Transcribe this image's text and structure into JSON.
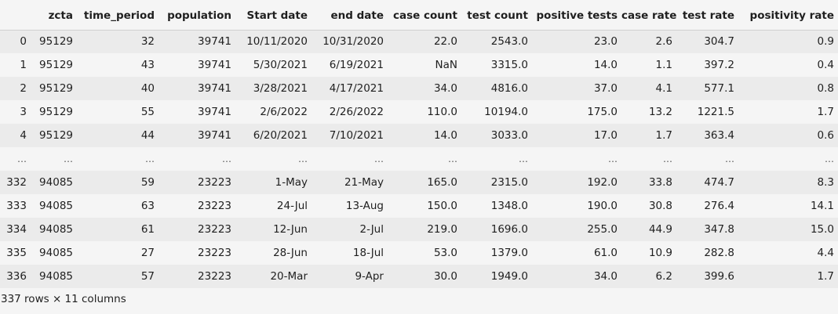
{
  "table": {
    "columns": [
      "",
      "zcta",
      "time_period",
      "population",
      "Start date",
      "end date",
      "case count",
      "test count",
      "positive tests",
      "case rate",
      "test rate",
      "positivity rate"
    ],
    "rows": [
      [
        "0",
        "95129",
        "32",
        "39741",
        "10/11/2020",
        "10/31/2020",
        "22.0",
        "2543.0",
        "23.0",
        "2.6",
        "304.7",
        "0.9"
      ],
      [
        "1",
        "95129",
        "43",
        "39741",
        "5/30/2021",
        "6/19/2021",
        "NaN",
        "3315.0",
        "14.0",
        "1.1",
        "397.2",
        "0.4"
      ],
      [
        "2",
        "95129",
        "40",
        "39741",
        "3/28/2021",
        "4/17/2021",
        "34.0",
        "4816.0",
        "37.0",
        "4.1",
        "577.1",
        "0.8"
      ],
      [
        "3",
        "95129",
        "55",
        "39741",
        "2/6/2022",
        "2/26/2022",
        "110.0",
        "10194.0",
        "175.0",
        "13.2",
        "1221.5",
        "1.7"
      ],
      [
        "4",
        "95129",
        "44",
        "39741",
        "6/20/2021",
        "7/10/2021",
        "14.0",
        "3033.0",
        "17.0",
        "1.7",
        "363.4",
        "0.6"
      ],
      [
        "...",
        "...",
        "...",
        "...",
        "...",
        "...",
        "...",
        "...",
        "...",
        "...",
        "...",
        "..."
      ],
      [
        "332",
        "94085",
        "59",
        "23223",
        "1-May",
        "21-May",
        "165.0",
        "2315.0",
        "192.0",
        "33.8",
        "474.7",
        "8.3"
      ],
      [
        "333",
        "94085",
        "63",
        "23223",
        "24-Jul",
        "13-Aug",
        "150.0",
        "1348.0",
        "190.0",
        "30.8",
        "276.4",
        "14.1"
      ],
      [
        "334",
        "94085",
        "61",
        "23223",
        "12-Jun",
        "2-Jul",
        "219.0",
        "1696.0",
        "255.0",
        "44.9",
        "347.8",
        "15.0"
      ],
      [
        "335",
        "94085",
        "27",
        "23223",
        "28-Jun",
        "18-Jul",
        "53.0",
        "1379.0",
        "61.0",
        "10.9",
        "282.8",
        "4.4"
      ],
      [
        "336",
        "94085",
        "57",
        "23223",
        "20-Mar",
        "9-Apr",
        "30.0",
        "1949.0",
        "34.0",
        "6.2",
        "399.6",
        "1.7"
      ]
    ],
    "shape_note": "337 rows × 11 columns"
  }
}
